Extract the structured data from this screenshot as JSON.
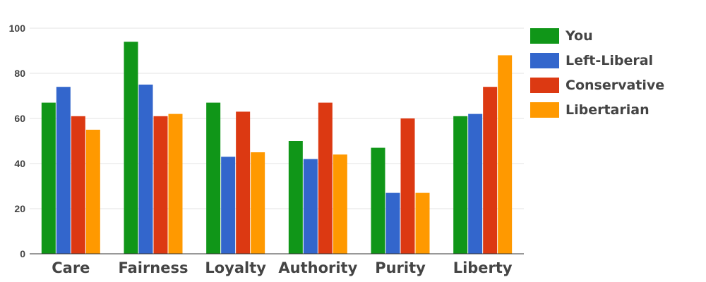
{
  "chart_data": {
    "type": "bar",
    "categories": [
      "Care",
      "Fairness",
      "Loyalty",
      "Authority",
      "Purity",
      "Liberty"
    ],
    "series": [
      {
        "name": "You",
        "color": "#109618",
        "values": [
          67,
          94,
          67,
          50,
          47,
          61
        ]
      },
      {
        "name": "Left-Liberal",
        "color": "#3366cc",
        "values": [
          74,
          75,
          43,
          42,
          27,
          62
        ]
      },
      {
        "name": "Conservative",
        "color": "#dc3912",
        "values": [
          61,
          61,
          63,
          67,
          60,
          74
        ]
      },
      {
        "name": "Libertarian",
        "color": "#ff9900",
        "values": [
          55,
          62,
          45,
          44,
          27,
          88
        ]
      }
    ],
    "ylim": [
      0,
      100
    ],
    "yticks": [
      0,
      20,
      40,
      60,
      80,
      100
    ],
    "grid": true,
    "legend": "right",
    "title": "",
    "xlabel": "",
    "ylabel": ""
  }
}
